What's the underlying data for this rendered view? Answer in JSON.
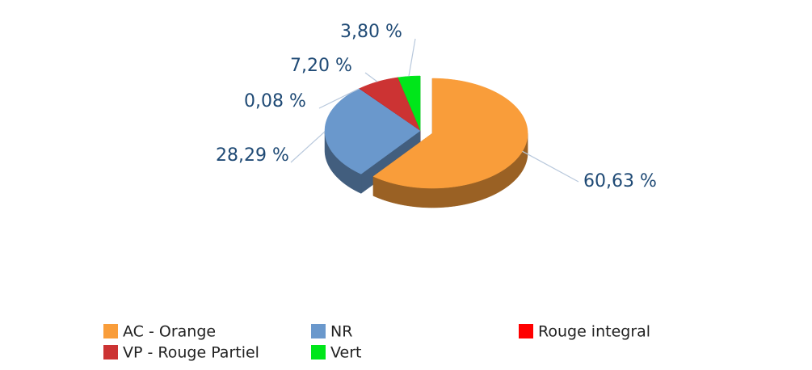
{
  "chart_data": {
    "type": "pie",
    "categories": [
      "AC - Orange",
      "NR",
      "Rouge integral",
      "VP - Rouge Partiel",
      "Vert"
    ],
    "values": [
      60.63,
      28.29,
      0.08,
      7.2,
      3.8
    ],
    "value_labels": [
      "60,63 %",
      "28,29 %",
      "0,08 %",
      "7,20 %",
      "3,80 %"
    ],
    "colors": [
      "#f99d3a",
      "#6a98cc",
      "#ff0000",
      "#cc3333",
      "#00e61a"
    ]
  }
}
